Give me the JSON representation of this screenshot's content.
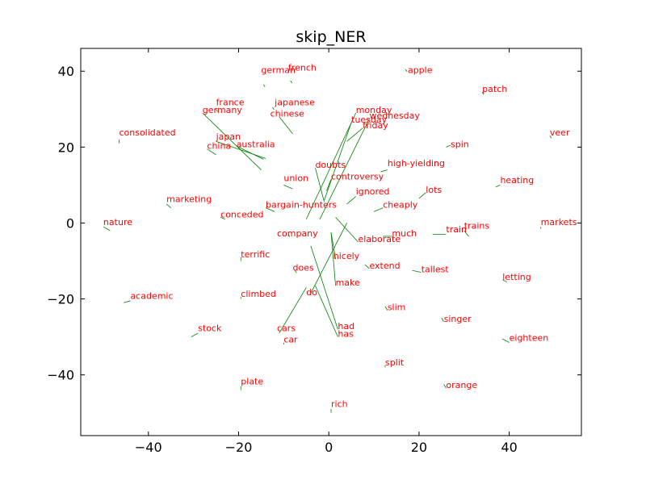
{
  "chart_data": {
    "type": "scatter",
    "title": "skip_NER",
    "xlabel": "",
    "ylabel": "",
    "xlim": [
      -55,
      56
    ],
    "ylim": [
      -56,
      46
    ],
    "grid": false,
    "x_ticks": [
      {
        "value": -40,
        "label": "−40"
      },
      {
        "value": -20,
        "label": "−20"
      },
      {
        "value": 0,
        "label": "0"
      },
      {
        "value": 20,
        "label": "20"
      },
      {
        "value": 40,
        "label": "40"
      }
    ],
    "y_ticks": [
      {
        "value": 40,
        "label": "40"
      },
      {
        "value": 20,
        "label": "20"
      },
      {
        "value": 0,
        "label": "0"
      },
      {
        "value": -20,
        "label": "−20"
      },
      {
        "value": -40,
        "label": "−40"
      }
    ],
    "colors": {
      "label": "#ff0000",
      "arrow": "#008000"
    },
    "points": [
      {
        "label": "german",
        "x": -15,
        "y": 39.5,
        "from": [
          -14.5,
          36.5
        ]
      },
      {
        "label": "french",
        "x": -9,
        "y": 40.2,
        "from": [
          -8.5,
          37.5
        ]
      },
      {
        "label": "apple",
        "x": 17.5,
        "y": 39.5,
        "from": [
          17,
          40.5
        ]
      },
      {
        "label": "patch",
        "x": 34,
        "y": 34.5,
        "from": [
          34,
          34.5
        ]
      },
      {
        "label": "france",
        "x": -25,
        "y": 31,
        "from": [
          -25,
          30
        ]
      },
      {
        "label": "japanese",
        "x": -12,
        "y": 31,
        "from": [
          -12.5,
          30.5
        ]
      },
      {
        "label": "germany",
        "x": -28,
        "y": 29,
        "from": [
          -28,
          29
        ],
        "to": [
          -15,
          14
        ]
      },
      {
        "label": "chinese",
        "x": -13,
        "y": 28,
        "from": [
          -11,
          28
        ],
        "to": [
          -8,
          23.5
        ]
      },
      {
        "label": "monday",
        "x": 6,
        "y": 29,
        "from": [
          6,
          29
        ],
        "to": [
          -5,
          1
        ]
      },
      {
        "label": "wednesday",
        "x": 9,
        "y": 27.5,
        "from": [
          9,
          27.5
        ],
        "to": [
          -2,
          1
        ]
      },
      {
        "label": "tuesday",
        "x": 5,
        "y": 26.5,
        "from": [
          5,
          26.5
        ],
        "to": [
          -1,
          6
        ]
      },
      {
        "label": "friday",
        "x": 7.5,
        "y": 25,
        "from": [
          7.5,
          25
        ],
        "to": [
          4,
          21.5
        ]
      },
      {
        "label": "consolidated",
        "x": -46.5,
        "y": 23,
        "from": [
          -46.5,
          22
        ],
        "to": [
          -46.5,
          21
        ]
      },
      {
        "label": "veer",
        "x": 49,
        "y": 23,
        "from": [
          49,
          23
        ]
      },
      {
        "label": "japan",
        "x": -25,
        "y": 22,
        "from": [
          -25,
          21.5
        ],
        "to": [
          -14,
          17
        ]
      },
      {
        "label": "australia",
        "x": -20.5,
        "y": 20,
        "from": [
          -20,
          20
        ],
        "to": [
          -14.5,
          16.8
        ]
      },
      {
        "label": "china",
        "x": -27,
        "y": 19.5,
        "from": [
          -27,
          19.5
        ],
        "to": [
          -25,
          18
        ]
      },
      {
        "label": "spin",
        "x": 27,
        "y": 20,
        "from": [
          27,
          20.5
        ],
        "to": [
          26,
          20
        ]
      },
      {
        "label": "doubts",
        "x": -3,
        "y": 14.5,
        "from": [
          -3,
          14.5
        ],
        "to": [
          -1,
          5.5
        ]
      },
      {
        "label": "high-yielding",
        "x": 13,
        "y": 15,
        "from": [
          13,
          14
        ],
        "to": [
          11.5,
          13.5
        ]
      },
      {
        "label": "controversy",
        "x": 0.5,
        "y": 11.5,
        "from": [
          0.5,
          11.5
        ],
        "to": [
          -0.5,
          8.5
        ]
      },
      {
        "label": "union",
        "x": -10,
        "y": 11,
        "from": [
          -10,
          10
        ],
        "to": [
          -8,
          9
        ]
      },
      {
        "label": "heating",
        "x": 38,
        "y": 10.5,
        "from": [
          38,
          10
        ],
        "to": [
          37,
          9.5
        ]
      },
      {
        "label": "ignored",
        "x": 6,
        "y": 7.5,
        "from": [
          6,
          7
        ],
        "to": [
          4,
          5
        ]
      },
      {
        "label": "lots",
        "x": 21.5,
        "y": 8,
        "from": [
          21.5,
          8
        ],
        "to": [
          20,
          6.5
        ]
      },
      {
        "label": "marketing",
        "x": -36,
        "y": 5.5,
        "from": [
          -36,
          5
        ],
        "to": [
          -35,
          4
        ]
      },
      {
        "label": "bargain-hunters",
        "x": -14,
        "y": 4,
        "from": [
          -14,
          4
        ],
        "to": [
          -12,
          3
        ]
      },
      {
        "label": "cheaply",
        "x": 12,
        "y": 4,
        "from": [
          12,
          4
        ],
        "to": [
          10,
          3
        ]
      },
      {
        "label": "conceded",
        "x": -24,
        "y": 1.5,
        "from": [
          -24,
          1.5
        ],
        "to": [
          -23,
          1
        ]
      },
      {
        "label": "nature",
        "x": -50,
        "y": -0.5,
        "from": [
          -50,
          -1
        ],
        "to": [
          -48.5,
          -2
        ]
      },
      {
        "label": "markets",
        "x": 47,
        "y": -0.5,
        "from": [
          47,
          -1
        ],
        "to": [
          47,
          -1.5
        ]
      },
      {
        "label": "trains",
        "x": 30,
        "y": -1.5,
        "from": [
          30,
          -2
        ],
        "to": [
          31,
          -3.5
        ]
      },
      {
        "label": "train",
        "x": 26,
        "y": -2.5,
        "from": [
          26,
          -3
        ],
        "to": [
          23,
          -3
        ]
      },
      {
        "label": "company",
        "x": -11.5,
        "y": -3.5,
        "from": [
          -9,
          -3
        ],
        "to": [
          -9,
          -3
        ]
      },
      {
        "label": "much",
        "x": 14,
        "y": -3.5,
        "from": [
          14,
          -3.5
        ],
        "to": [
          12,
          -3.5
        ]
      },
      {
        "label": "elaborate",
        "x": 6.5,
        "y": -5,
        "from": [
          6.5,
          -5
        ],
        "to": [
          1.5,
          1.5
        ]
      },
      {
        "label": "terrific",
        "x": -19.5,
        "y": -9,
        "from": [
          -19.5,
          -9
        ],
        "to": [
          -19.5,
          -10
        ]
      },
      {
        "label": "hicely",
        "x": 1,
        "y": -9.5,
        "from": [
          1.5,
          -9.5
        ],
        "to": [
          0.5,
          -2.5
        ]
      },
      {
        "label": "extend",
        "x": 9,
        "y": -12,
        "from": [
          9,
          -12
        ],
        "to": [
          8,
          -11
        ]
      },
      {
        "label": "does",
        "x": -8,
        "y": -12.5,
        "from": [
          -7.5,
          -12.5
        ],
        "to": [
          -7.5,
          -12.5
        ]
      },
      {
        "label": "tallest",
        "x": 20.5,
        "y": -13,
        "from": [
          20.5,
          -13
        ],
        "to": [
          18.5,
          -12.5
        ]
      },
      {
        "label": "letting",
        "x": 38.5,
        "y": -15,
        "from": [
          39.5,
          -15.5
        ],
        "to": [
          38.5,
          -15
        ]
      },
      {
        "label": "make",
        "x": 1.5,
        "y": -16.5,
        "from": [
          1.5,
          -16.5
        ],
        "to": [
          0.5,
          -2.5
        ]
      },
      {
        "label": "do",
        "x": -5,
        "y": -19,
        "from": [
          -4,
          -18.5
        ],
        "to": [
          4,
          0
        ]
      },
      {
        "label": "climbed",
        "x": -19.5,
        "y": -19.5,
        "from": [
          -19.5,
          -19.5
        ],
        "to": [
          -19.5,
          -20
        ]
      },
      {
        "label": "academic",
        "x": -44,
        "y": -20,
        "from": [
          -44,
          -20.5
        ],
        "to": [
          -45.5,
          -21
        ]
      },
      {
        "label": "slim",
        "x": 13,
        "y": -23,
        "from": [
          13,
          -23
        ],
        "to": [
          12.5,
          -22
        ]
      },
      {
        "label": "singer",
        "x": 25.5,
        "y": -26,
        "from": [
          25.5,
          -26
        ],
        "to": [
          25,
          -25
        ]
      },
      {
        "label": "had",
        "x": 2,
        "y": -28,
        "from": [
          2,
          -28
        ],
        "to": [
          -4,
          -6
        ]
      },
      {
        "label": "cars",
        "x": -11.5,
        "y": -28.5,
        "from": [
          -11,
          -29
        ],
        "to": [
          -5,
          -17
        ]
      },
      {
        "label": "stock",
        "x": -29,
        "y": -28.5,
        "from": [
          -29,
          -29
        ],
        "to": [
          -30.5,
          -30
        ]
      },
      {
        "label": "has",
        "x": 2,
        "y": -30,
        "from": [
          2,
          -30
        ],
        "to": [
          -3,
          -16.5
        ]
      },
      {
        "label": "eighteen",
        "x": 40,
        "y": -31,
        "from": [
          40,
          -31.5
        ],
        "to": [
          38.5,
          -30.5
        ]
      },
      {
        "label": "car",
        "x": -10,
        "y": -31.5,
        "from": [
          -10,
          -31.5
        ],
        "to": [
          -10,
          -32
        ]
      },
      {
        "label": "split",
        "x": 12.5,
        "y": -37.5,
        "from": [
          12.5,
          -37.5
        ],
        "to": [
          12.5,
          -38
        ]
      },
      {
        "label": "plate",
        "x": -19.5,
        "y": -42.5,
        "from": [
          -19.5,
          -43
        ],
        "to": [
          -19.5,
          -44
        ]
      },
      {
        "label": "orange",
        "x": 26,
        "y": -43.5,
        "from": [
          26,
          -43.5
        ],
        "to": [
          25.5,
          -42.5
        ]
      },
      {
        "label": "rich",
        "x": 0.5,
        "y": -48.5,
        "from": [
          0.5,
          -49
        ],
        "to": [
          0.5,
          -50
        ]
      }
    ]
  }
}
